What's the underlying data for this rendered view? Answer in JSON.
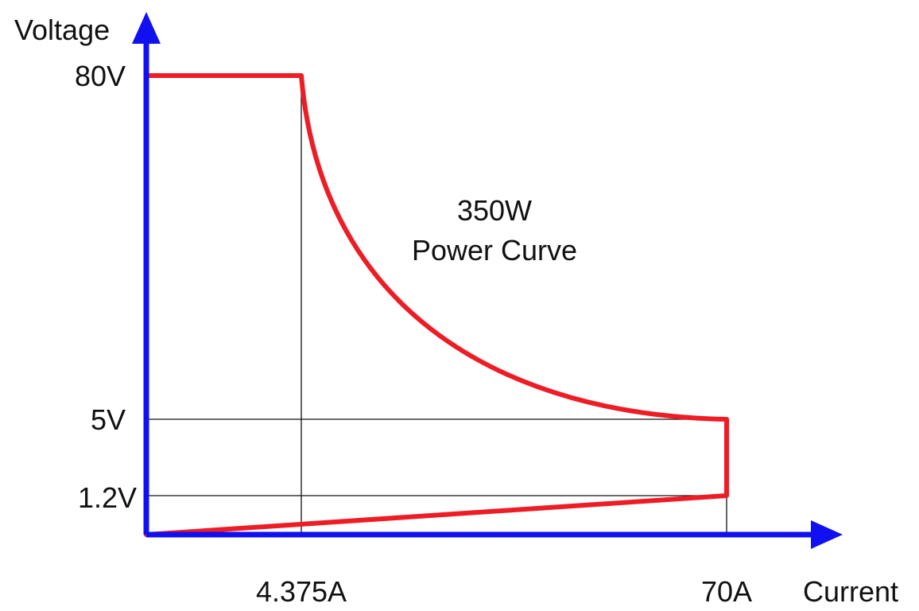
{
  "colors": {
    "axis": "#1010f0",
    "curve": "#ee1c25",
    "guide": "#111111",
    "text": "#111111"
  },
  "chart_data": {
    "type": "line",
    "xlabel": "Current",
    "ylabel": "Voltage",
    "annotation": [
      "350W",
      "Power Curve"
    ],
    "x_ticks": [
      {
        "value": 4.375,
        "label": "4.375A"
      },
      {
        "value": 70,
        "label": "70A"
      }
    ],
    "y_ticks": [
      {
        "value": 80,
        "label": "80V"
      },
      {
        "value": 5,
        "label": "5V"
      },
      {
        "value": 1.2,
        "label": "1.2V"
      }
    ],
    "grid": false,
    "series": [
      {
        "power_limit_w": 350,
        "boundary": [
          {
            "x": 0,
            "y": 80
          },
          {
            "x": 4.375,
            "y": 80
          },
          {
            "power_curve_to": {
              "x": 70,
              "y": 5
            }
          },
          {
            "x": 70,
            "y": 1.2
          },
          {
            "x": 0,
            "y": 0
          }
        ]
      }
    ]
  }
}
